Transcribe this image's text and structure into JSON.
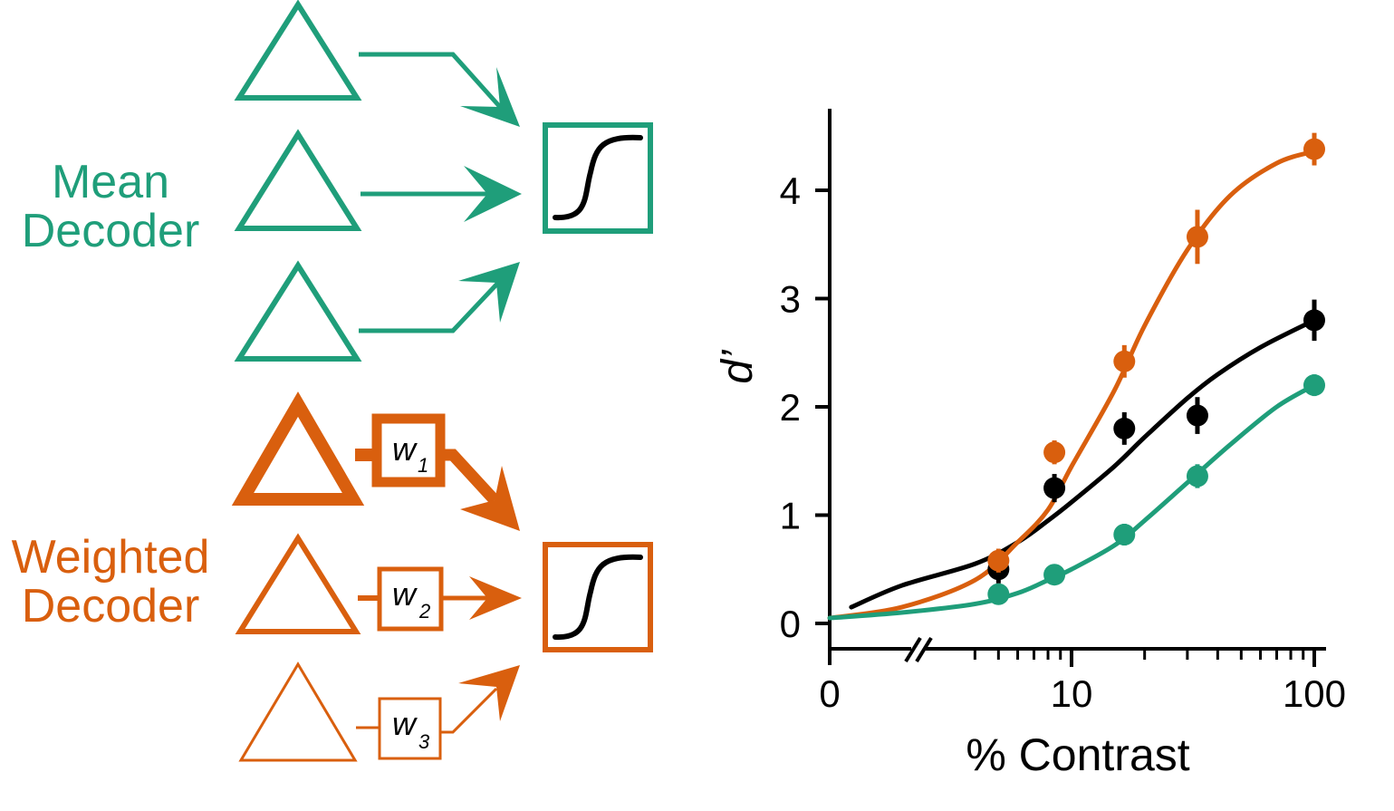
{
  "colors": {
    "mean": "#1f9e7a",
    "weighted": "#d95f0e",
    "black": "#000000"
  },
  "icons": {
    "neuron": "triangle-icon",
    "readout": "sigmoid-icon",
    "connection": "arrow-icon"
  },
  "diagram": {
    "mean_decoder": {
      "label_line1": "Mean",
      "label_line2": "Decoder"
    },
    "weighted_decoder": {
      "label_line1": "Weighted",
      "label_line2": "Decoder",
      "weights": [
        {
          "base": "w",
          "sub": "1"
        },
        {
          "base": "w",
          "sub": "2"
        },
        {
          "base": "w",
          "sub": "3"
        }
      ]
    }
  },
  "chart_data": {
    "type": "scatter",
    "xlabel": "% Contrast",
    "ylabel": "d’",
    "x_scale": "log (with axis break after 0)",
    "xticks": [
      "0",
      "10",
      "100"
    ],
    "yticks": [
      "0",
      "1",
      "2",
      "3",
      "4"
    ],
    "ylim": [
      0,
      4.5
    ],
    "series": [
      {
        "color": "#000000",
        "points": [
          {
            "x": 5,
            "y": 0.5,
            "err": 0.08
          },
          {
            "x": 8.5,
            "y": 1.25,
            "err": 0.08
          },
          {
            "x": 16.5,
            "y": 1.8,
            "err": 0.1
          },
          {
            "x": 33,
            "y": 1.92,
            "err": 0.12
          },
          {
            "x": 100,
            "y": 2.8,
            "err": 0.14
          }
        ],
        "fit": [
          [
            0.6,
            0.15
          ],
          [
            2,
            0.35
          ],
          [
            4,
            0.55
          ],
          [
            6,
            0.75
          ],
          [
            8,
            0.95
          ],
          [
            10,
            1.12
          ],
          [
            15,
            1.45
          ],
          [
            20,
            1.72
          ],
          [
            30,
            2.08
          ],
          [
            40,
            2.3
          ],
          [
            60,
            2.55
          ],
          [
            100,
            2.8
          ]
        ]
      },
      {
        "color": "#d95f0e",
        "points": [
          {
            "x": 5,
            "y": 0.58,
            "err": 0.06
          },
          {
            "x": 8.5,
            "y": 1.58,
            "err": 0.06
          },
          {
            "x": 16.5,
            "y": 2.42,
            "err": 0.1
          },
          {
            "x": 33,
            "y": 3.57,
            "err": 0.2
          },
          {
            "x": 100,
            "y": 4.38,
            "err": 0.1
          }
        ],
        "fit": [
          [
            0.0,
            0.05
          ],
          [
            2,
            0.15
          ],
          [
            4,
            0.4
          ],
          [
            6,
            0.75
          ],
          [
            8,
            1.05
          ],
          [
            10,
            1.45
          ],
          [
            15,
            2.15
          ],
          [
            20,
            2.75
          ],
          [
            30,
            3.45
          ],
          [
            45,
            3.95
          ],
          [
            70,
            4.25
          ],
          [
            100,
            4.36
          ]
        ]
      },
      {
        "color": "#1f9e7a",
        "points": [
          {
            "x": 5,
            "y": 0.27,
            "err": 0.04
          },
          {
            "x": 8.5,
            "y": 0.45,
            "err": 0.04
          },
          {
            "x": 16.5,
            "y": 0.82,
            "err": 0.05
          },
          {
            "x": 33,
            "y": 1.36,
            "err": 0.06
          },
          {
            "x": 100,
            "y": 2.2,
            "err": 0.05
          }
        ],
        "fit": [
          [
            0.0,
            0.05
          ],
          [
            2,
            0.1
          ],
          [
            4,
            0.18
          ],
          [
            6,
            0.28
          ],
          [
            8,
            0.4
          ],
          [
            10,
            0.5
          ],
          [
            15,
            0.72
          ],
          [
            20,
            0.95
          ],
          [
            30,
            1.3
          ],
          [
            45,
            1.65
          ],
          [
            70,
            2.0
          ],
          [
            100,
            2.2
          ]
        ]
      }
    ]
  }
}
